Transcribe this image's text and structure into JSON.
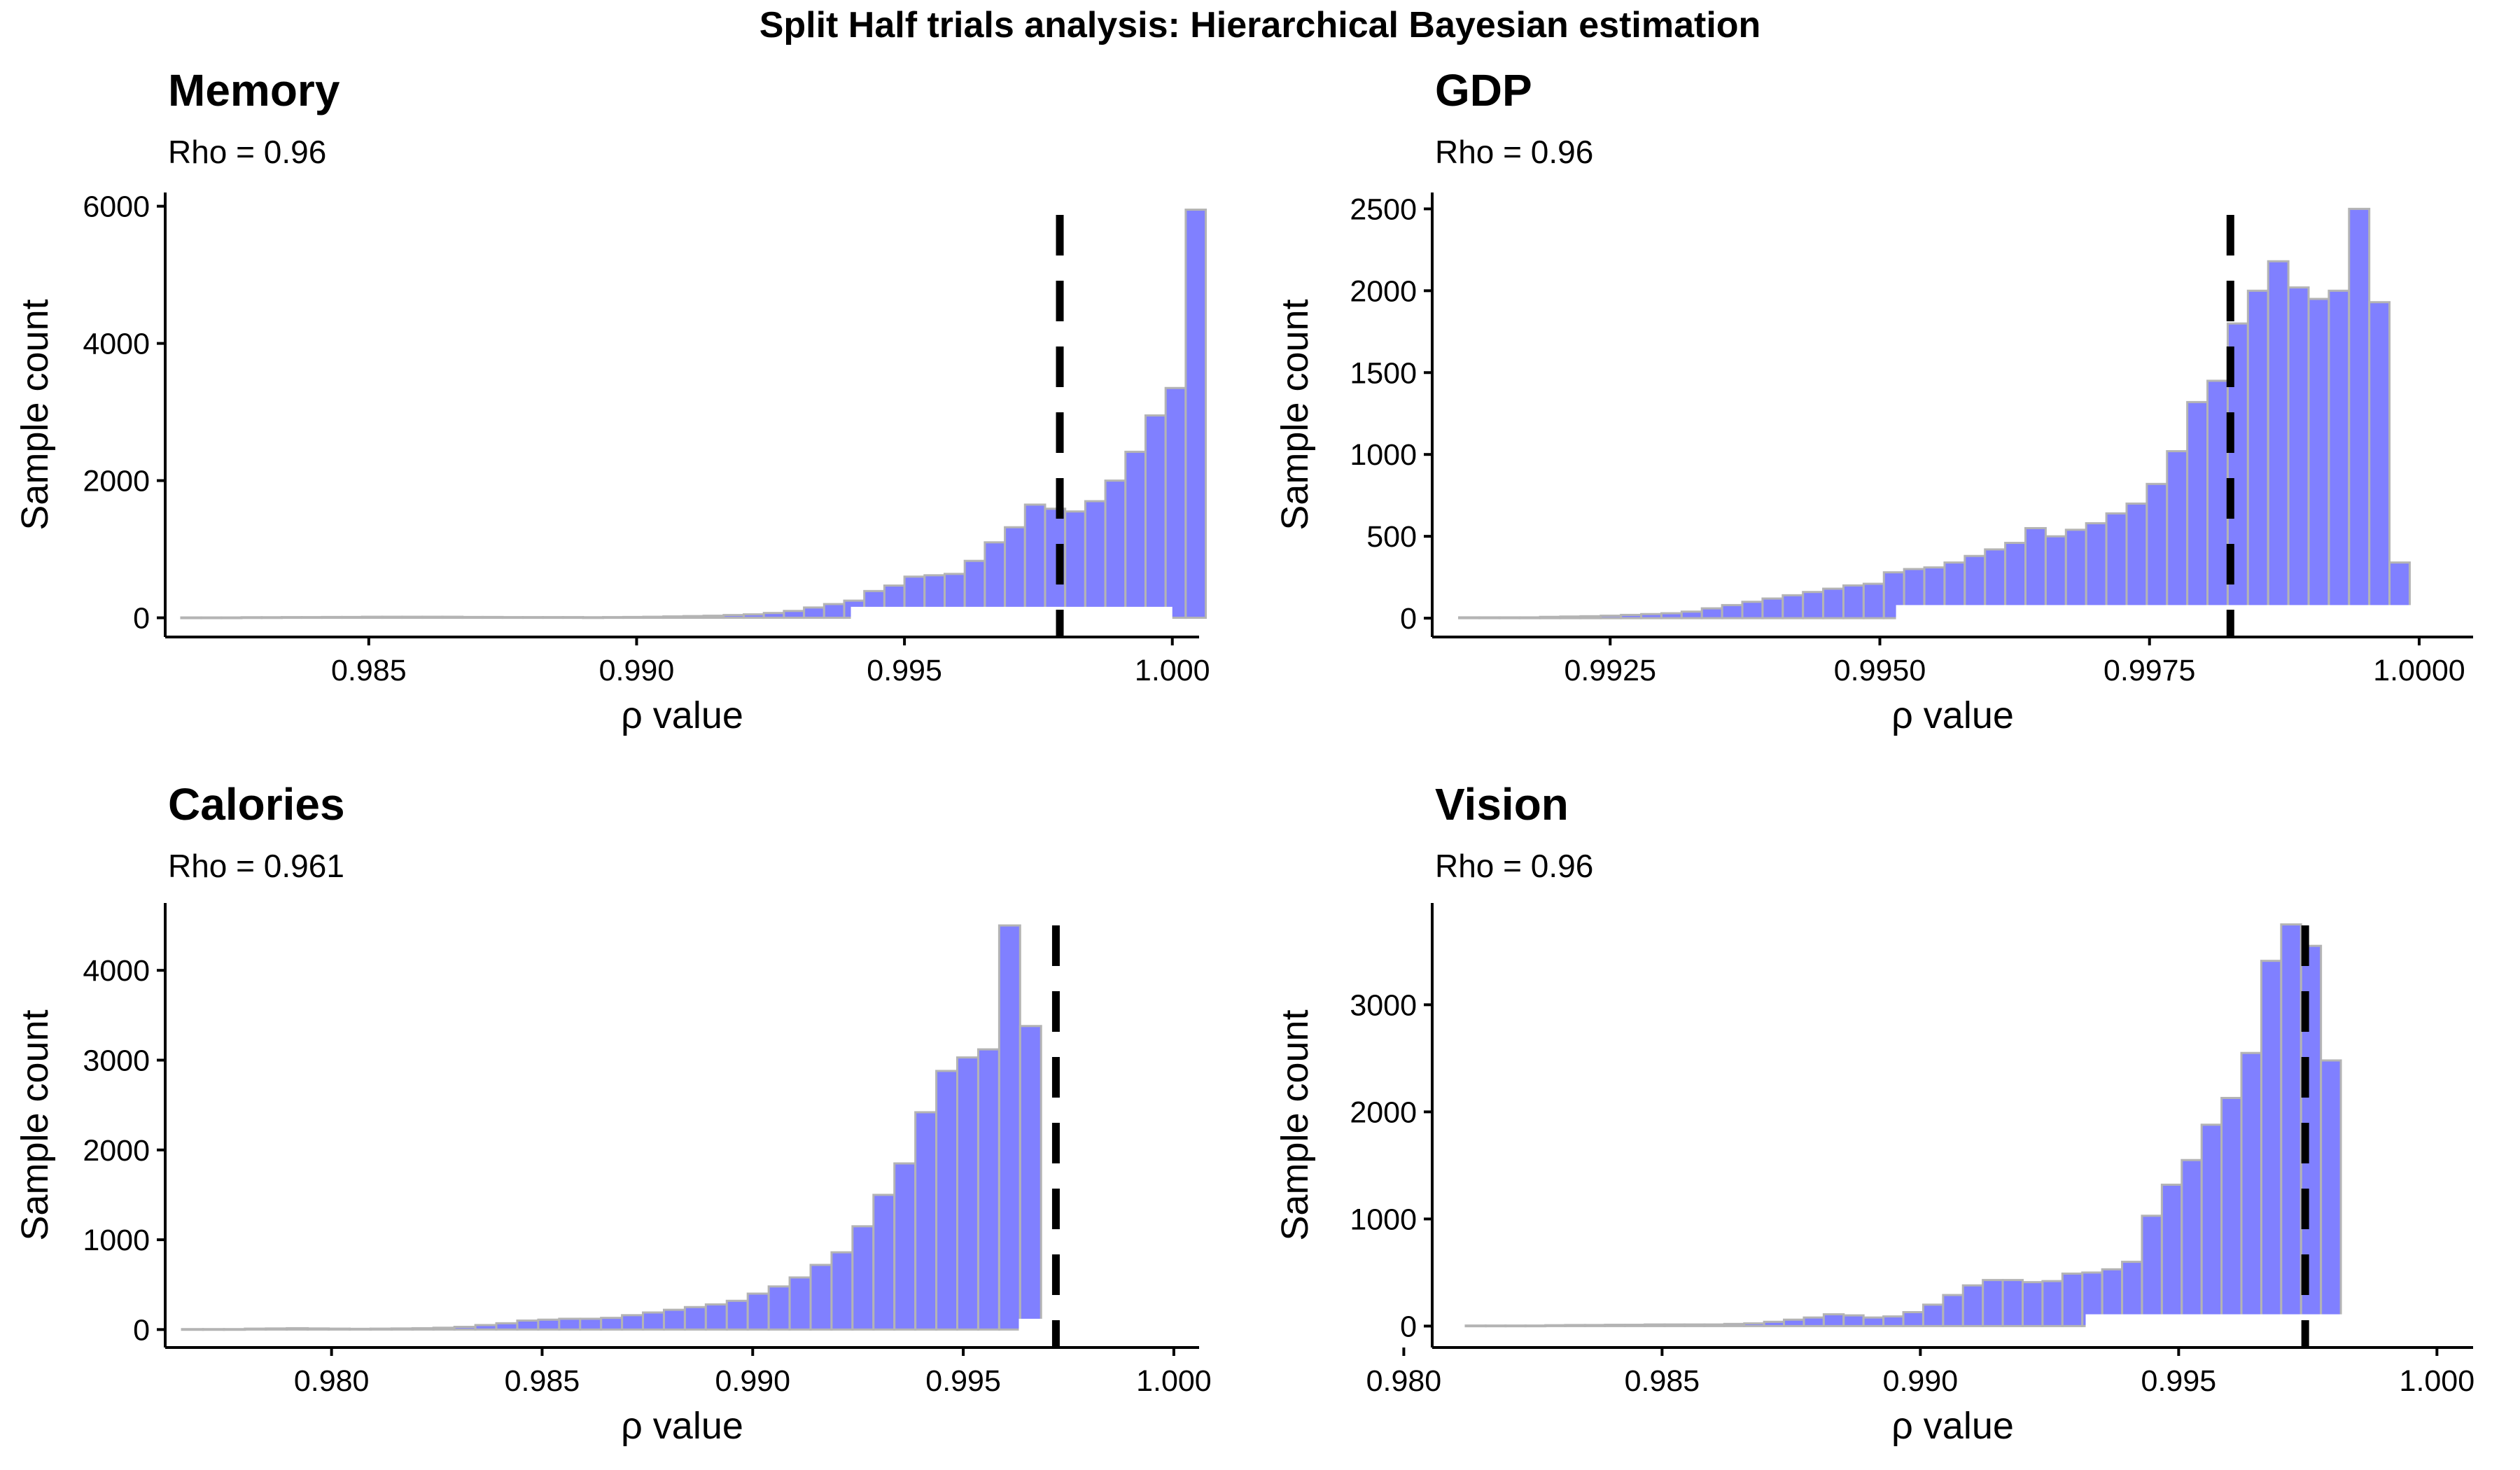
{
  "title": "Split Half trials analysis: Hierarchical Bayesian estimation",
  "colors": {
    "bar_fill": "#8080ff",
    "bar_stroke": "#b4b4b4",
    "line": "#000000",
    "axis": "#000000"
  },
  "chart_data": [
    {
      "type": "bar",
      "title": "Memory",
      "subtitle": "Rho = 0.96",
      "xlabel": "ρ value",
      "ylabel": "Sample count",
      "xlim": [
        0.9812,
        1.0005
      ],
      "ylim": [
        -280,
        6200
      ],
      "xticks": [
        0.985,
        0.99,
        0.995,
        1.0
      ],
      "xtick_labels": [
        "0.985",
        "0.990",
        "0.995",
        "1.000"
      ],
      "yticks": [
        0,
        2000,
        4000,
        6000
      ],
      "ytick_labels": [
        "0",
        "2000",
        "4000",
        "6000"
      ],
      "reference_line_x": 0.9979,
      "bin_start": 0.9815,
      "bin_width": 0.000375,
      "values": [
        5,
        5,
        5,
        8,
        8,
        10,
        10,
        12,
        12,
        15,
        15,
        15,
        15,
        15,
        12,
        12,
        10,
        10,
        10,
        10,
        8,
        10,
        12,
        15,
        20,
        25,
        30,
        40,
        50,
        70,
        100,
        150,
        200,
        250,
        390,
        470,
        600,
        620,
        640,
        830,
        1100,
        1320,
        1650,
        1590,
        1550,
        1700,
        2000,
        2420,
        2950,
        3350,
        5950
      ],
      "base_gaps": [
        {
          "from": 0.994,
          "to": 1.0,
          "height": 160
        }
      ]
    },
    {
      "type": "bar",
      "title": "GDP",
      "subtitle": "Rho = 0.96",
      "xlabel": "ρ value",
      "ylabel": "Sample count",
      "xlim": [
        0.99085,
        1.0005
      ],
      "ylim": [
        -115,
        2600
      ],
      "xticks": [
        0.9925,
        0.995,
        0.9975,
        1.0
      ],
      "xtick_labels": [
        "0.9925",
        "0.9950",
        "0.9975",
        "1.0000"
      ],
      "yticks": [
        0,
        500,
        1000,
        1500,
        2000,
        2500
      ],
      "ytick_labels": [
        "0",
        "500",
        "1000",
        "1500",
        "2000",
        "2500"
      ],
      "reference_line_x": 0.99825,
      "bin_start": 0.9911,
      "bin_width": 0.0001875,
      "values": [
        5,
        5,
        5,
        5,
        8,
        10,
        12,
        15,
        20,
        25,
        30,
        40,
        60,
        80,
        100,
        120,
        140,
        160,
        180,
        200,
        210,
        280,
        300,
        310,
        340,
        380,
        420,
        460,
        550,
        500,
        540,
        580,
        640,
        700,
        820,
        1020,
        1320,
        1450,
        1800,
        2000,
        2180,
        2020,
        1950,
        2000,
        2500,
        1930,
        340
      ],
      "base_gaps": [
        {
          "from": 0.99515,
          "to": 0.99995,
          "height": 80
        }
      ]
    },
    {
      "type": "bar",
      "title": "Calories",
      "subtitle": "Rho = 0.961",
      "xlabel": "ρ value",
      "ylabel": "Sample count",
      "xlim": [
        0.97605,
        1.0006
      ],
      "ylim": [
        -200,
        4750
      ],
      "xticks": [
        0.98,
        0.985,
        0.99,
        0.995,
        1.0
      ],
      "xtick_labels": [
        "0.980",
        "0.985",
        "0.990",
        "0.995",
        "1.000"
      ],
      "yticks": [
        0,
        1000,
        2000,
        3000,
        4000
      ],
      "ytick_labels": [
        "0",
        "1000",
        "2000",
        "3000",
        "4000"
      ],
      "reference_line_x": 0.9972,
      "bin_start": 0.97645,
      "bin_width": 0.0004975,
      "values": [
        5,
        5,
        5,
        10,
        12,
        15,
        12,
        10,
        8,
        10,
        12,
        15,
        20,
        30,
        50,
        70,
        100,
        110,
        120,
        120,
        130,
        160,
        190,
        220,
        250,
        280,
        320,
        400,
        480,
        580,
        720,
        860,
        1150,
        1500,
        1850,
        2420,
        2880,
        3030,
        3120,
        4500,
        3380
      ],
      "base_gaps": [
        {
          "from": 0.99632,
          "to": 1.0,
          "height": 120
        }
      ]
    },
    {
      "type": "bar",
      "title": "Vision",
      "subtitle": "Rho = 0.96",
      "xlabel": "ρ value",
      "ylabel": "Sample count",
      "xlim": [
        0.98055,
        1.0007
      ],
      "ylim": [
        -200,
        3950
      ],
      "xticks": [
        0.98,
        0.985,
        0.99,
        0.995,
        1.0
      ],
      "xtick_labels": [
        "0.980",
        "0.985",
        "0.990",
        "0.995",
        "1.000"
      ],
      "yticks": [
        0,
        1000,
        2000,
        3000
      ],
      "ytick_labels": [
        "0",
        "1000",
        "2000",
        "3000"
      ],
      "reference_line_x": 0.99745,
      "bin_start": 0.9812,
      "bin_width": 0.000385,
      "values": [
        5,
        5,
        5,
        5,
        8,
        10,
        10,
        12,
        12,
        15,
        15,
        15,
        15,
        20,
        25,
        40,
        60,
        80,
        110,
        100,
        80,
        90,
        130,
        200,
        290,
        380,
        430,
        430,
        410,
        420,
        490,
        500,
        530,
        600,
        1030,
        1320,
        1550,
        1880,
        2130,
        2550,
        3410,
        3750,
        3550,
        2480
      ],
      "base_gaps": [
        {
          "from": 0.9932,
          "to": 1.0,
          "height": 110
        }
      ]
    }
  ]
}
